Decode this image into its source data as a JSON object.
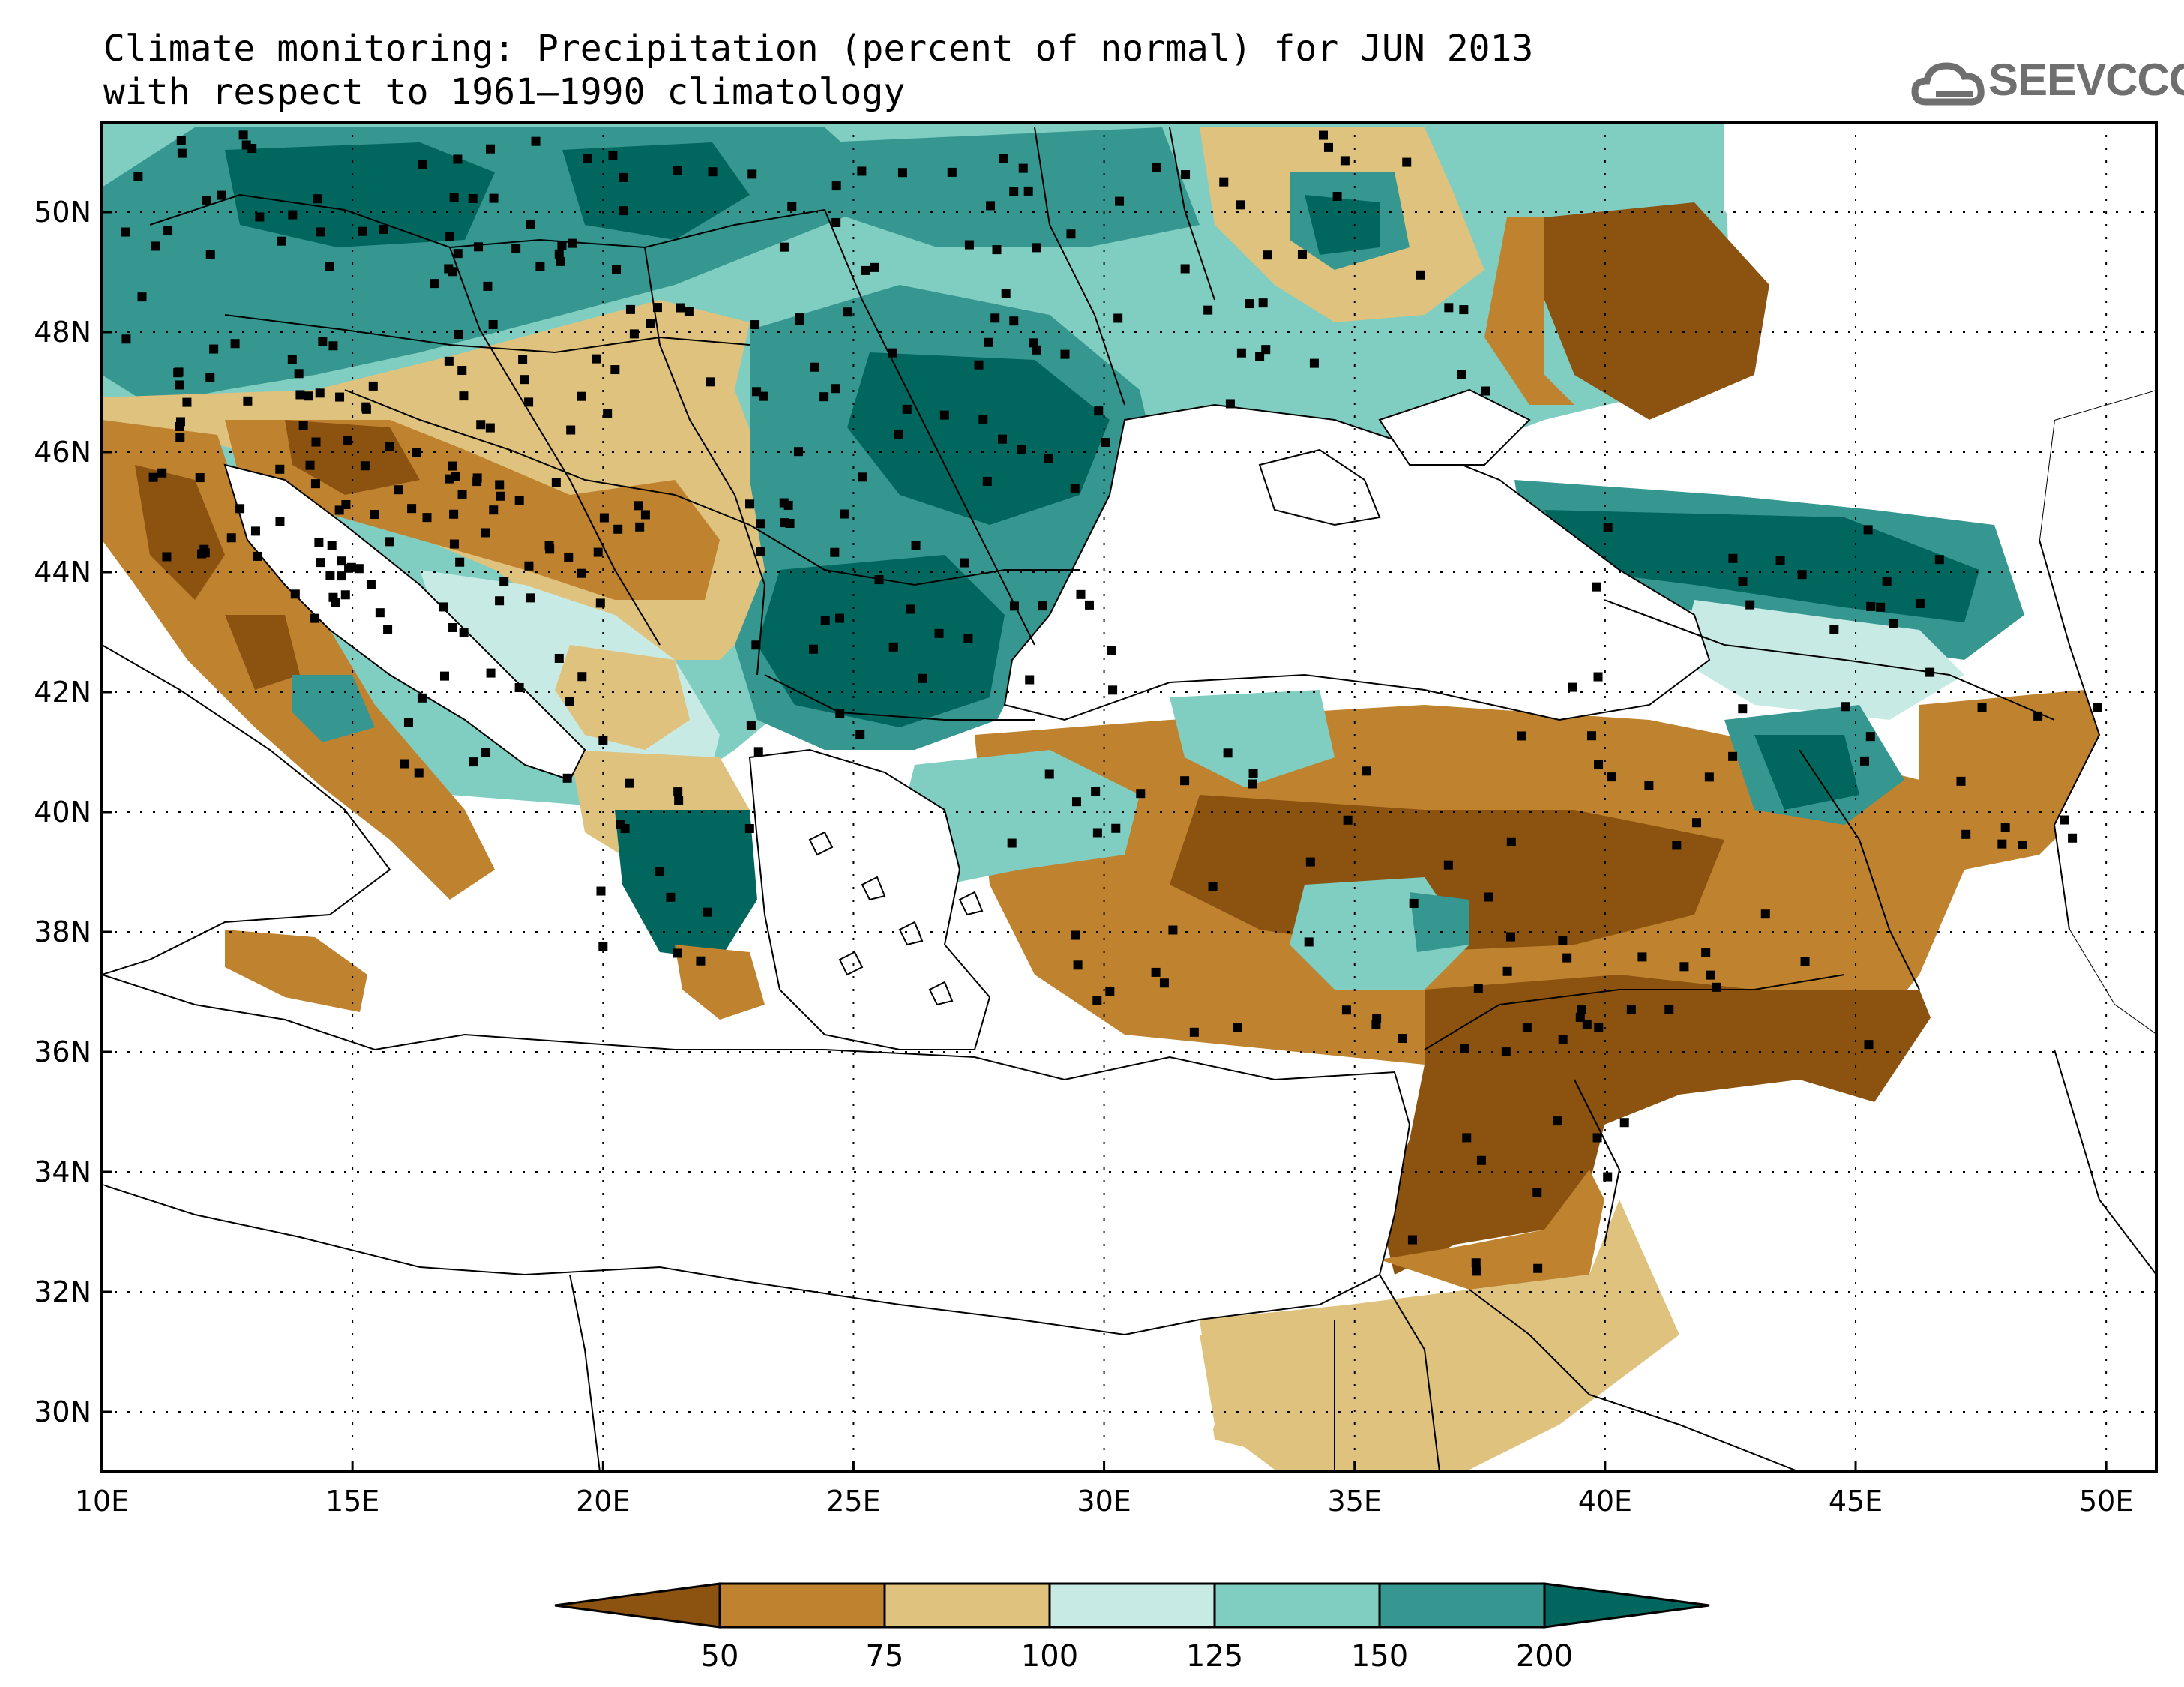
{
  "title": {
    "line1": "Climate monitoring: Precipitation (percent of normal) for JUN 2013",
    "line2": "with respect to 1961–1990 climatology"
  },
  "logo": {
    "text": "SEEVCCC",
    "icon": "cloud-icon"
  },
  "axes": {
    "lon_labels": [
      "10E",
      "15E",
      "20E",
      "25E",
      "30E",
      "35E",
      "40E",
      "45E",
      "50E"
    ],
    "lat_labels": [
      "50N",
      "48N",
      "46N",
      "44N",
      "42N",
      "40N",
      "38N",
      "36N",
      "34N",
      "32N",
      "30N"
    ],
    "lon_range": [
      10,
      51
    ],
    "lat_range": [
      29,
      51.5
    ],
    "grid": "dotted"
  },
  "colorbar": {
    "labels": [
      "50",
      "75",
      "100",
      "125",
      "150",
      "200"
    ],
    "colors": [
      "#8c5210",
      "#bf822f",
      "#dfc27d",
      "#c7eae5",
      "#80cdc1",
      "#35978f",
      "#01665e"
    ]
  },
  "colors": {
    "c1": "#8c5210",
    "c2": "#bf822f",
    "c3": "#dfc27d",
    "c4": "#c7eae5",
    "c5": "#80cdc1",
    "c6": "#35978f",
    "c7": "#01665e"
  }
}
